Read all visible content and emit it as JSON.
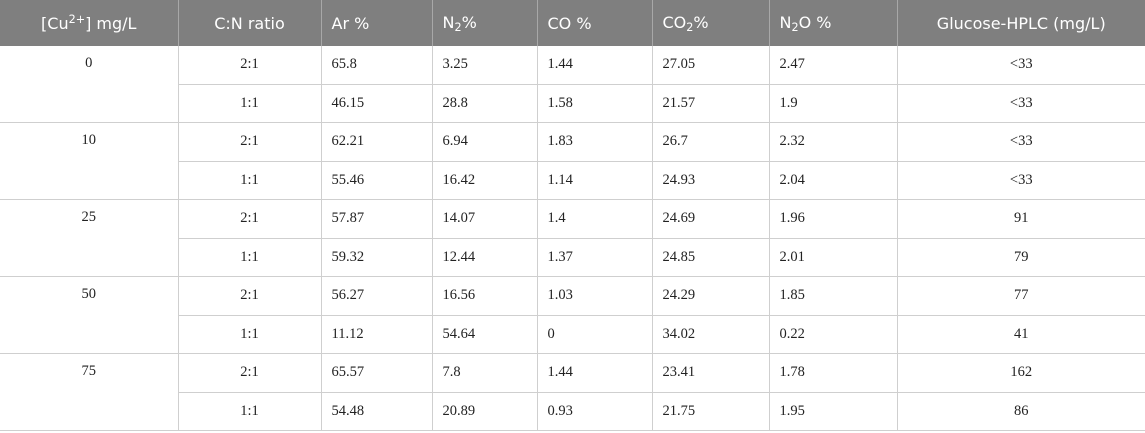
{
  "headers": {
    "cu_prefix": "[Cu",
    "cu_sup": "2+",
    "cu_suffix": "] mg/L",
    "cn_ratio": "C:N ratio",
    "ar": "Ar %",
    "n2_prefix": "N",
    "n2_sub": "2",
    "n2_suffix": "%",
    "co": "CO %",
    "co2_prefix": "CO",
    "co2_sub": "2",
    "co2_suffix": "%",
    "n2o_prefix": "N",
    "n2o_sub": "2",
    "n2o_suffix": "O %",
    "glucose": "Glucose-HPLC (mg/L)"
  },
  "groups": [
    {
      "cu": "0",
      "rows": [
        {
          "ratio": "2:1",
          "ar": "65.8",
          "n2": "3.25",
          "co": "1.44",
          "co2": "27.05",
          "n2o": "2.47",
          "glucose": "<33"
        },
        {
          "ratio": "1:1",
          "ar": "46.15",
          "n2": "28.8",
          "co": "1.58",
          "co2": "21.57",
          "n2o": "1.9",
          "glucose": "<33"
        }
      ]
    },
    {
      "cu": "10",
      "rows": [
        {
          "ratio": "2:1",
          "ar": "62.21",
          "n2": "6.94",
          "co": "1.83",
          "co2": "26.7",
          "n2o": "2.32",
          "glucose": "<33"
        },
        {
          "ratio": "1:1",
          "ar": "55.46",
          "n2": "16.42",
          "co": "1.14",
          "co2": "24.93",
          "n2o": "2.04",
          "glucose": "<33"
        }
      ]
    },
    {
      "cu": "25",
      "rows": [
        {
          "ratio": "2:1",
          "ar": "57.87",
          "n2": "14.07",
          "co": "1.4",
          "co2": "24.69",
          "n2o": "1.96",
          "glucose": "91"
        },
        {
          "ratio": "1:1",
          "ar": "59.32",
          "n2": "12.44",
          "co": "1.37",
          "co2": "24.85",
          "n2o": "2.01",
          "glucose": "79"
        }
      ]
    },
    {
      "cu": "50",
      "rows": [
        {
          "ratio": "2:1",
          "ar": "56.27",
          "n2": "16.56",
          "co": "1.03",
          "co2": "24.29",
          "n2o": "1.85",
          "glucose": "77"
        },
        {
          "ratio": "1:1",
          "ar": "11.12",
          "n2": "54.64",
          "co": "0",
          "co2": "34.02",
          "n2o": "0.22",
          "glucose": "41"
        }
      ]
    },
    {
      "cu": "75",
      "rows": [
        {
          "ratio": "2:1",
          "ar": "65.57",
          "n2": "7.8",
          "co": "1.44",
          "co2": "23.41",
          "n2o": "1.78",
          "glucose": "162"
        },
        {
          "ratio": "1:1",
          "ar": "54.48",
          "n2": "20.89",
          "co": "0.93",
          "co2": "21.75",
          "n2o": "1.95",
          "glucose": "86"
        }
      ]
    }
  ]
}
